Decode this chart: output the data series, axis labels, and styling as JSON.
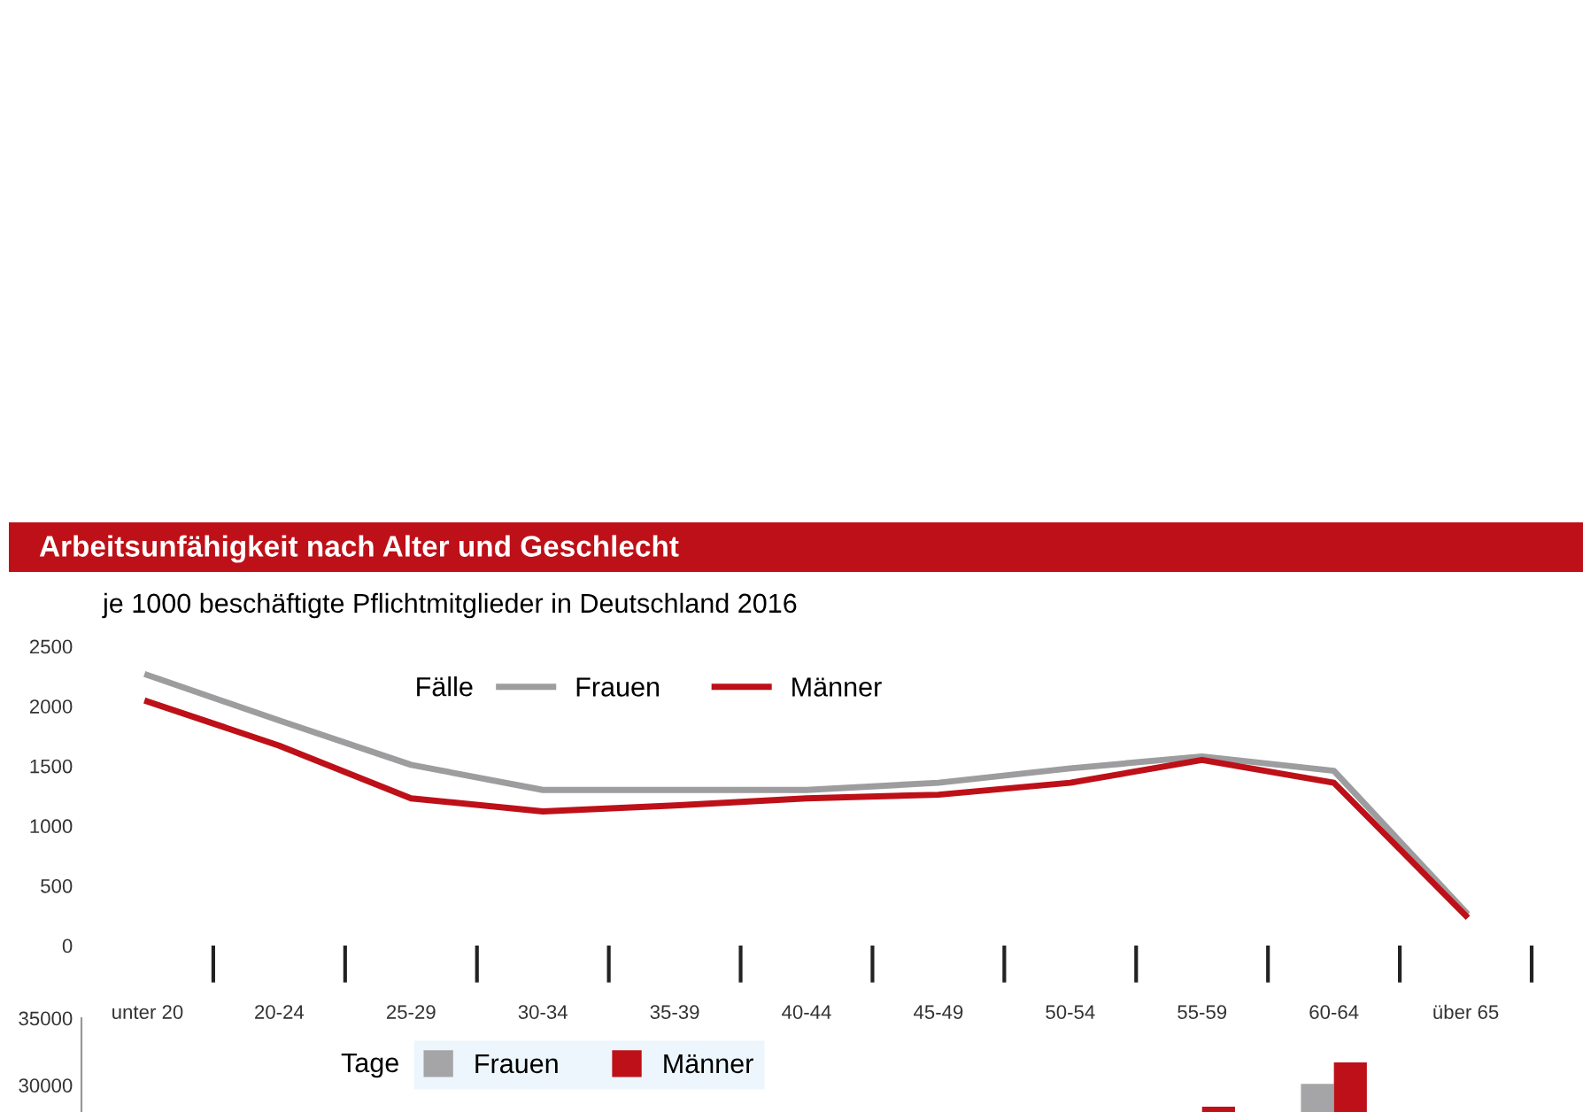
{
  "chart_data": [
    {
      "type": "line",
      "title": "Arbeitsunfähigkeit nach Alter und Geschlecht",
      "subtitle": "je 1000 beschäftigte Pflichtmitglieder in Deutschland 2016",
      "legend_title": "Fälle",
      "categories": [
        "unter 20",
        "20-24",
        "25-29",
        "30-34",
        "35-39",
        "40-44",
        "45-49",
        "50-54",
        "55-59",
        "60-64",
        "über 65"
      ],
      "series": [
        {
          "name": "Frauen",
          "color": "#9d9d9f",
          "values": [
            2260,
            1880,
            1510,
            1300,
            1300,
            1300,
            1360,
            1480,
            1580,
            1460,
            280
          ]
        },
        {
          "name": "Männer",
          "color": "#be1018",
          "values": [
            2040,
            1670,
            1230,
            1120,
            1170,
            1230,
            1260,
            1360,
            1550,
            1360,
            250
          ]
        }
      ],
      "ylim": [
        0,
        2500
      ],
      "yticks": [
        0,
        500,
        1000,
        1500,
        2000,
        2500
      ],
      "grid": false,
      "legend": "top",
      "line_style": "solid",
      "marker": "none"
    },
    {
      "type": "bar",
      "legend_title": "Tage",
      "categories": [
        null,
        null,
        null,
        null,
        null,
        null,
        null,
        null,
        null,
        null,
        null
      ],
      "series": [
        {
          "name": "Frauen",
          "color": "#a5a5a7",
          "values": [
            null,
            null,
            null,
            null,
            null,
            null,
            null,
            null,
            null,
            30100,
            null
          ]
        },
        {
          "name": "Männer",
          "color": "#be1018",
          "values": [
            null,
            null,
            null,
            null,
            null,
            null,
            null,
            null,
            28400,
            31700,
            null
          ]
        }
      ],
      "ylim": [
        28000,
        35000
      ],
      "yticks": [
        30000,
        35000
      ],
      "grid": false,
      "legend": "left",
      "tick_labels": "y"
    }
  ]
}
